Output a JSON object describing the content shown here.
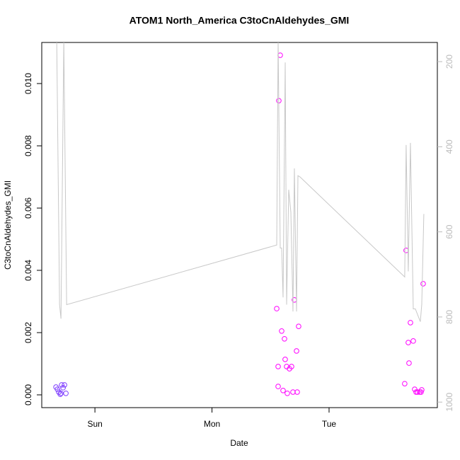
{
  "chart_data": {
    "type": "scatter",
    "title": "ATOM1 North_America C3toCnAldehydes_GMI",
    "x_label": "Date",
    "y_label": "C3toCnAldehydes_GMI",
    "xlim": [
      -10.9,
      70.2
    ],
    "xticks": [
      {
        "value": 0,
        "label": "Sun"
      },
      {
        "value": 24,
        "label": "Mon"
      },
      {
        "value": 48,
        "label": "Tue"
      }
    ],
    "ylim": [
      -0.00041,
      0.01132
    ],
    "yticks": [
      {
        "value": 0,
        "label": "0.000"
      },
      0.002,
      0.004,
      0.006,
      0.008,
      {
        "value": 0.01,
        "label": "0.010"
      }
    ],
    "y2lim": [
      1013,
      155
    ],
    "y2ticks": [
      200,
      400,
      600,
      800,
      1000
    ],
    "series": [
      {
        "color": "#7f3fff",
        "x": [
          -7.98,
          -7.69,
          -7.4,
          -7.11,
          -6.96,
          -6.82,
          -6.53,
          -6.24,
          -5.95
        ],
        "values": [
          0.00025,
          0.00018,
          9e-05,
          2e-05,
          5e-05,
          0.00032,
          0.00023,
          0.00032,
          5e-05
        ]
      },
      {
        "color": "#ff00ff",
        "x": [
          37.99,
          37.7,
          37.27,
          37.56,
          37.56,
          38.28,
          38.57,
          38.86,
          39.0,
          39.3,
          39.44,
          39.88,
          40.31,
          40.6,
          40.89,
          41.33,
          41.47,
          41.76,
          63.51,
          63.8,
          64.68,
          64.24,
          64.39,
          65.26,
          65.55,
          65.84,
          66.13,
          66.56,
          66.85,
          67.0,
          67.29
        ],
        "values": [
          0.01091,
          0.00945,
          0.00277,
          0.00091,
          0.00027,
          0.00205,
          0.00014,
          0.0018,
          0.00114,
          0.00091,
          5e-05,
          0.00084,
          0.00091,
          9e-05,
          0.00305,
          0.00141,
          9e-05,
          0.0022,
          0.00036,
          0.00464,
          0.00232,
          0.00168,
          0.00102,
          0.00173,
          0.00018,
          9e-05,
          9e-05,
          9e-05,
          9e-05,
          0.00016,
          0.00357
        ]
      },
      {
        "type": "line",
        "axis": "y2",
        "color": "#c8c8c8",
        "x": [
          -7.83,
          -7.25,
          -6.96,
          -6.38,
          -5.8,
          37.27,
          37.56,
          37.99,
          38.28,
          38.57,
          39.01,
          39.3,
          39.73,
          40.17,
          40.6,
          40.89,
          41.33,
          41.62,
          42.05,
          63.51,
          63.8,
          64.24,
          64.68,
          65.26,
          65.69,
          66.71,
          67.0,
          67.43
        ],
        "values": [
          150,
          771,
          804,
          150,
          771,
          631,
          150,
          638,
          638,
          754,
          202,
          771,
          501,
          554,
          787,
          451,
          787,
          468,
          471,
          706,
          396,
          693,
          391,
          781,
          781,
          811,
          771,
          558
        ]
      }
    ]
  }
}
